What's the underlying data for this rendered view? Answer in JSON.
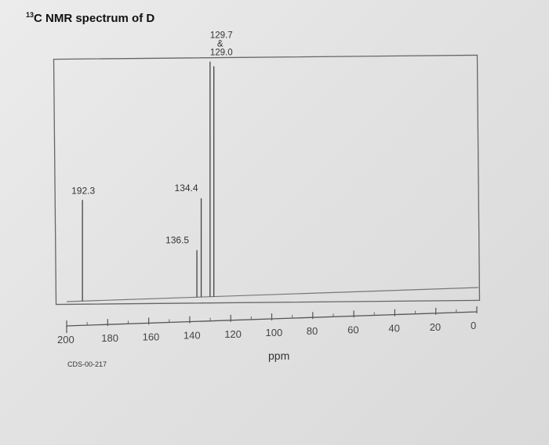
{
  "title": {
    "mass": "13",
    "text": "C NMR spectrum of D"
  },
  "catalog_id": "CDS-00-217",
  "chart_data": {
    "type": "line",
    "title": "13C NMR spectrum of D",
    "xlabel": "ppm",
    "ylabel": "",
    "xlim": [
      200,
      0
    ],
    "x_reversed": true,
    "ticks": [
      "200",
      "180",
      "160",
      "140",
      "120",
      "100",
      "80",
      "60",
      "40",
      "20",
      "0"
    ],
    "series": [
      {
        "values": [
          {
            "x": 192.3,
            "height": 0.43,
            "label": "192.3"
          },
          {
            "x": 136.5,
            "height": 0.2,
            "label": "136.5"
          },
          {
            "x": 134.4,
            "height": 0.42,
            "label": "134.4"
          },
          {
            "x": 129.7,
            "height": 1.0,
            "label": "129.7\n&\n129.0"
          },
          {
            "x": 129.0,
            "height": 0.98,
            "label": ""
          }
        ]
      }
    ]
  },
  "colors": {
    "ink": "#444444",
    "border": "#555555"
  }
}
